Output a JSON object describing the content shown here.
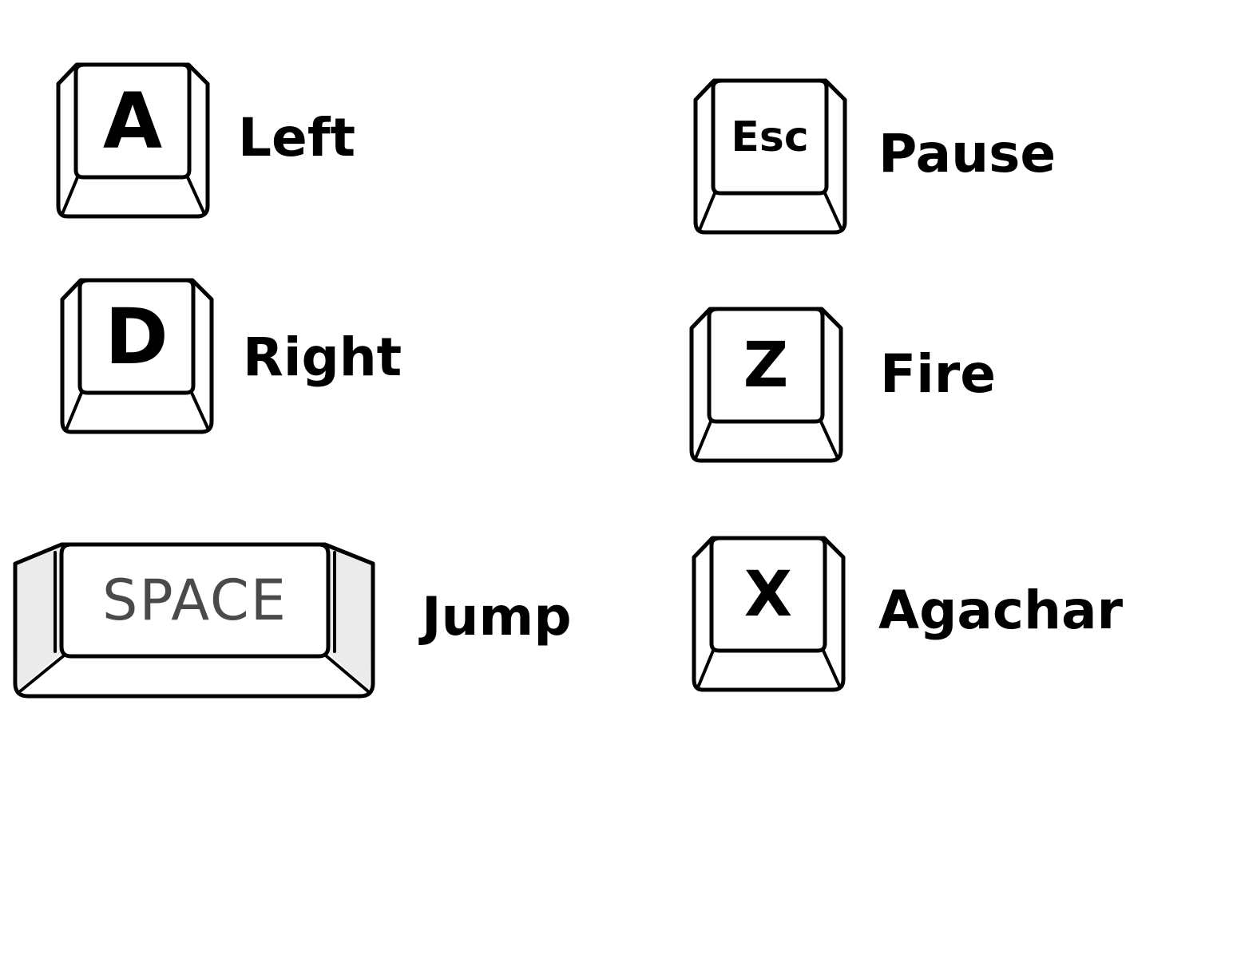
{
  "controls": {
    "left": {
      "key": "A",
      "action": "Left"
    },
    "right": {
      "key": "D",
      "action": "Right"
    },
    "jump": {
      "key": "SPACE",
      "action": "Jump"
    },
    "pause": {
      "key": "Esc",
      "action": "Pause"
    },
    "fire": {
      "key": "Z",
      "action": "Fire"
    },
    "crouch": {
      "key": "X",
      "action": "Agachar"
    }
  },
  "colors": {
    "background": "#ffffff",
    "key_outline": "#000000",
    "text": "#000000",
    "space_key_text": "#4a4a4a"
  },
  "icons": {
    "key_cap": "keyboard-key-icon",
    "space_cap": "spacebar-key-icon"
  }
}
